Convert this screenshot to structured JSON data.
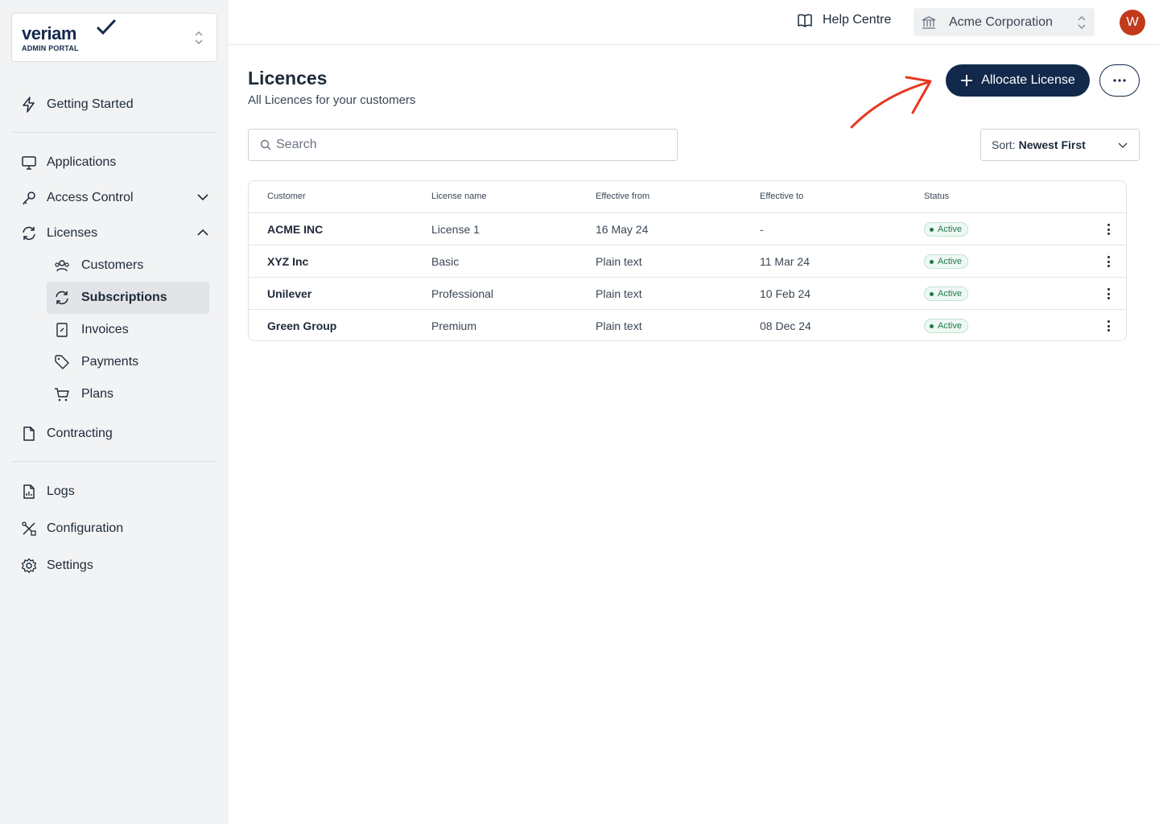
{
  "brand": {
    "name": "veriam",
    "subtitle": "ADMIN PORTAL"
  },
  "sidebar": {
    "items": [
      {
        "label": "Getting Started",
        "icon": "lightning-icon"
      },
      {
        "label": "Applications",
        "icon": "monitor-icon"
      },
      {
        "label": "Access Control",
        "icon": "key-icon"
      },
      {
        "label": "Licenses",
        "icon": "refresh-icon"
      },
      {
        "label": "Contracting",
        "icon": "document-icon"
      },
      {
        "label": "Logs",
        "icon": "log-file-icon"
      },
      {
        "label": "Configuration",
        "icon": "tools-icon"
      },
      {
        "label": "Settings",
        "icon": "gear-icon"
      }
    ],
    "sub_items": [
      {
        "label": "Customers",
        "icon": "users-icon"
      },
      {
        "label": "Subscriptions",
        "icon": "refresh-icon",
        "active": true
      },
      {
        "label": "Invoices",
        "icon": "invoice-icon"
      },
      {
        "label": "Payments",
        "icon": "tag-icon"
      },
      {
        "label": "Plans",
        "icon": "cart-icon"
      }
    ]
  },
  "topbar": {
    "help": "Help Centre",
    "organization": "Acme Corporation",
    "avatar_initial": "W"
  },
  "main": {
    "title": "Licences",
    "subtitle": "All Licences for your customers",
    "allocate_label": "Allocate License",
    "search_placeholder": "Search",
    "sort_prefix": "Sort:",
    "sort_value": "Newest First"
  },
  "table": {
    "headers": [
      "Customer",
      "License name",
      "Effective from",
      "Effective to",
      "Status"
    ],
    "rows": [
      {
        "customer": "ACME INC",
        "license": "License 1",
        "from": "16 May 24",
        "to": "-",
        "status": "Active"
      },
      {
        "customer": "XYZ Inc",
        "license": "Basic",
        "from": "Plain text",
        "to": "11 Mar 24",
        "status": "Active"
      },
      {
        "customer": "Unilever",
        "license": "Professional",
        "from": "Plain text",
        "to": "10 Feb 24",
        "status": "Active"
      },
      {
        "customer": "Green Group",
        "license": "Premium",
        "from": "Plain text",
        "to": "08 Dec 24",
        "status": "Active"
      }
    ]
  },
  "colors": {
    "primary": "#13294b",
    "avatar": "#c23a1b",
    "status_green": "#1f7a4a",
    "annotation_arrow": "#e8361f"
  }
}
